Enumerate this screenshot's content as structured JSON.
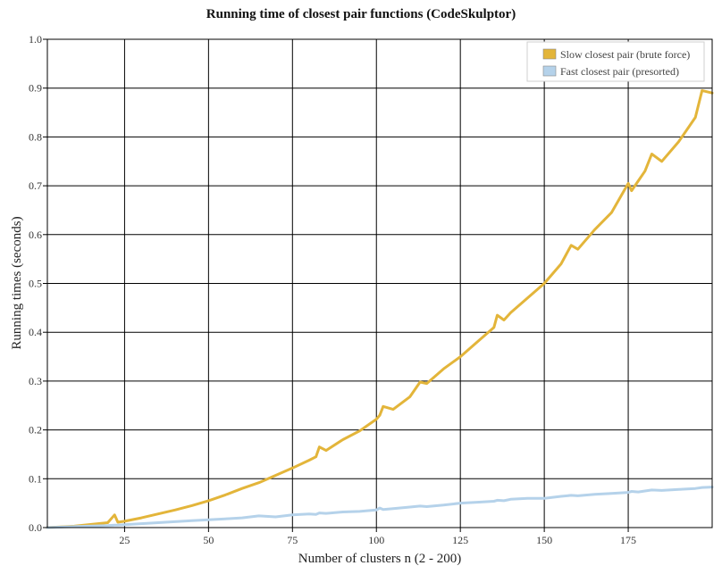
{
  "chart_data": {
    "type": "line",
    "title": "Running time of closest pair functions (CodeSkulptor)",
    "xlabel": "Number of clusters n (2 - 200)",
    "ylabel": "Running times (seconds)",
    "xlim": [
      2,
      200
    ],
    "ylim": [
      0,
      1.0
    ],
    "x_ticks": [
      25,
      50,
      75,
      100,
      125,
      150,
      175
    ],
    "y_ticks": [
      0.0,
      0.1,
      0.2,
      0.3,
      0.4,
      0.5,
      0.6,
      0.7,
      0.8,
      0.9,
      1.0
    ],
    "y_tick_labels": [
      "0.0",
      "0.1",
      "0.2",
      "0.3",
      "0.4",
      "0.5",
      "0.6",
      "0.7",
      "0.8",
      "0.9",
      "1.0"
    ],
    "grid": true,
    "legend_position": "top-right",
    "x": [
      2,
      10,
      20,
      22,
      23,
      25,
      30,
      35,
      40,
      45,
      50,
      55,
      60,
      65,
      70,
      75,
      80,
      82,
      83,
      85,
      90,
      95,
      100,
      101,
      102,
      105,
      110,
      113,
      115,
      120,
      125,
      130,
      135,
      136,
      138,
      140,
      145,
      150,
      155,
      158,
      160,
      165,
      170,
      175,
      176,
      178,
      180,
      182,
      185,
      190,
      195,
      197,
      200
    ],
    "series": [
      {
        "name": "Slow closest pair (brute force)",
        "color": "#e3b53a",
        "values": [
          0.0,
          0.003,
          0.01,
          0.026,
          0.011,
          0.013,
          0.02,
          0.028,
          0.036,
          0.045,
          0.055,
          0.067,
          0.08,
          0.092,
          0.107,
          0.122,
          0.138,
          0.145,
          0.165,
          0.158,
          0.18,
          0.198,
          0.222,
          0.23,
          0.248,
          0.242,
          0.268,
          0.298,
          0.295,
          0.325,
          0.35,
          0.38,
          0.41,
          0.435,
          0.425,
          0.44,
          0.47,
          0.5,
          0.54,
          0.578,
          0.57,
          0.61,
          0.645,
          0.705,
          0.69,
          0.71,
          0.73,
          0.765,
          0.75,
          0.79,
          0.84,
          0.895,
          0.89
        ]
      },
      {
        "name": "Fast closest pair (presorted)",
        "color": "#b5d2ea",
        "values": [
          0.0,
          0.002,
          0.004,
          0.005,
          0.005,
          0.006,
          0.008,
          0.01,
          0.012,
          0.014,
          0.016,
          0.018,
          0.02,
          0.024,
          0.022,
          0.026,
          0.028,
          0.027,
          0.03,
          0.029,
          0.032,
          0.033,
          0.036,
          0.04,
          0.037,
          0.039,
          0.042,
          0.044,
          0.043,
          0.046,
          0.05,
          0.052,
          0.054,
          0.056,
          0.055,
          0.058,
          0.06,
          0.06,
          0.064,
          0.066,
          0.065,
          0.068,
          0.07,
          0.072,
          0.074,
          0.073,
          0.075,
          0.077,
          0.076,
          0.078,
          0.08,
          0.082,
          0.083
        ]
      }
    ]
  }
}
